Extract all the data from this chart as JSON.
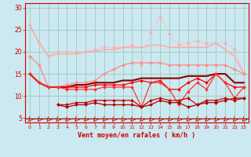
{
  "xlabel": "Vent moyen/en rafales ( km/h )",
  "bg_color": "#cce8f0",
  "grid_color": "#99ccbb",
  "x": [
    0,
    1,
    2,
    3,
    4,
    5,
    6,
    7,
    8,
    9,
    10,
    11,
    12,
    13,
    14,
    15,
    16,
    17,
    18,
    19,
    20,
    21,
    22,
    23
  ],
  "series": [
    {
      "y": [
        26,
        22,
        19,
        19.5,
        19.5,
        19.5,
        20,
        20,
        20.5,
        20.5,
        21,
        21,
        21,
        21.5,
        21.5,
        21,
        21,
        21,
        21,
        21,
        22,
        20.5,
        19,
        15
      ],
      "color": "#ffaaaa",
      "marker": null,
      "lw": 1.2,
      "ls": "-"
    },
    {
      "y": [
        26,
        22,
        19,
        20,
        20,
        20,
        20,
        20.5,
        21,
        21,
        21,
        21.5,
        17,
        24.5,
        28,
        24,
        21.5,
        22,
        22.5,
        22,
        22,
        22,
        20.5,
        15
      ],
      "color": "#ffaaaa",
      "marker": "D",
      "ms": 2.0,
      "lw": 0.8,
      "ls": ":"
    },
    {
      "y": [
        19,
        17,
        12,
        12,
        12.5,
        13,
        13,
        13.5,
        15,
        16,
        17,
        17.5,
        17.5,
        17.5,
        17.5,
        17,
        17,
        17,
        17,
        17,
        17,
        17,
        16,
        15
      ],
      "color": "#ff8888",
      "marker": "D",
      "ms": 2.0,
      "lw": 0.9,
      "ls": "-"
    },
    {
      "y": [
        15,
        13,
        12,
        12,
        12,
        12.5,
        12.5,
        13,
        13,
        13,
        13.5,
        13.5,
        14,
        14,
        14,
        14,
        14,
        14.5,
        14.5,
        14.5,
        15,
        15,
        13,
        13
      ],
      "color": "#880000",
      "marker": null,
      "lw": 1.5,
      "ls": "-"
    },
    {
      "y": [
        15,
        13,
        12,
        12,
        12,
        12,
        12,
        12.5,
        12.5,
        12.5,
        12.5,
        13,
        13.5,
        13,
        13.5,
        11.5,
        11.5,
        13,
        14,
        13,
        15,
        13,
        12,
        12
      ],
      "color": "#ff0000",
      "marker": "D",
      "ms": 2.0,
      "lw": 0.9,
      "ls": "-"
    },
    {
      "y": [
        15,
        13,
        12,
        12,
        11.5,
        11.5,
        11.5,
        11.5,
        12,
        12,
        12,
        12,
        7.5,
        13,
        13,
        11.5,
        8,
        11,
        13,
        11.5,
        15,
        13,
        9.5,
        12
      ],
      "color": "#ff3333",
      "marker": "D",
      "ms": 2.0,
      "lw": 0.9,
      "ls": "-"
    },
    {
      "y": [
        null,
        null,
        null,
        8,
        8,
        8.5,
        8.5,
        9,
        9,
        9,
        9,
        9,
        7.5,
        9,
        9.5,
        9,
        9,
        9.5,
        8,
        9,
        9,
        9.5,
        9,
        9.5
      ],
      "color": "#cc0000",
      "marker": "D",
      "ms": 2.0,
      "lw": 0.9,
      "ls": "-"
    },
    {
      "y": [
        null,
        null,
        null,
        8,
        7.5,
        8,
        8,
        8.5,
        8,
        8,
        8,
        8,
        7.5,
        8,
        9,
        8.5,
        8.5,
        7.5,
        8,
        8.5,
        8.5,
        9,
        9.5,
        9.5
      ],
      "color": "#aa0000",
      "marker": "D",
      "ms": 2.0,
      "lw": 0.9,
      "ls": "-"
    }
  ],
  "ylim": [
    4,
    31
  ],
  "xlim": [
    -0.5,
    23.5
  ],
  "yticks": [
    5,
    10,
    15,
    20,
    25,
    30
  ],
  "xticks": [
    0,
    1,
    2,
    3,
    4,
    5,
    6,
    7,
    8,
    9,
    10,
    11,
    12,
    13,
    14,
    15,
    16,
    17,
    18,
    19,
    20,
    21,
    22,
    23
  ]
}
